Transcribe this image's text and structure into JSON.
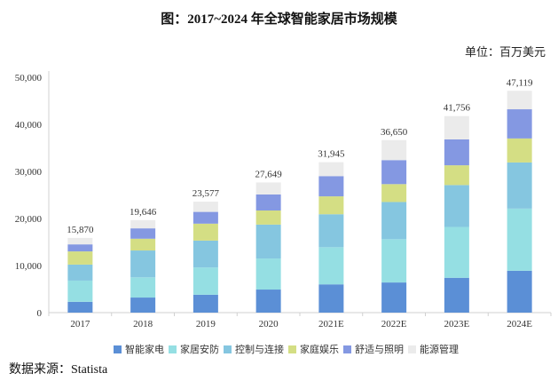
{
  "header": {
    "title": "图：2017~2024 年全球智能家居市场规模",
    "unit": "单位：百万美元"
  },
  "footer": {
    "source": "数据来源：Statista"
  },
  "chart_data": {
    "type": "bar",
    "stacked": true,
    "title": "图：2017~2024 年全球智能家居市场规模",
    "xlabel": "",
    "ylabel": "单位：百万美元",
    "ylim": [
      0,
      50000
    ],
    "yticks": [
      0,
      10000,
      20000,
      30000,
      40000,
      50000
    ],
    "ytick_labels": [
      "0",
      "10,000",
      "20,000",
      "30,000",
      "40,000",
      "50,000"
    ],
    "grid": false,
    "legend_position": "bottom",
    "categories": [
      "2017",
      "2018",
      "2019",
      "2020",
      "2021E",
      "2022E",
      "2023E",
      "2024E"
    ],
    "totals": [
      15870,
      19646,
      23577,
      27649,
      31945,
      36650,
      41756,
      47119
    ],
    "total_labels": [
      "15,870",
      "19,646",
      "23,577",
      "27,649",
      "31,945",
      "36,650",
      "41,756",
      "47,119"
    ],
    "series": [
      {
        "name": "智能家电",
        "color": "#5B8FD6",
        "values": [
          2300,
          3200,
          3800,
          4900,
          6000,
          6400,
          7400,
          8900
        ]
      },
      {
        "name": "家居安防",
        "color": "#95DFE3",
        "values": [
          4500,
          4300,
          5800,
          6600,
          7900,
          9200,
          10800,
          13200
        ]
      },
      {
        "name": "控制与连接",
        "color": "#85C6E0",
        "values": [
          3400,
          5700,
          5700,
          7200,
          7000,
          7900,
          8900,
          9800
        ]
      },
      {
        "name": "家庭娱乐",
        "color": "#D4DE84",
        "values": [
          2800,
          2500,
          3600,
          3000,
          3800,
          3800,
          4200,
          5100
        ]
      },
      {
        "name": "舒适与照明",
        "color": "#8498E2",
        "values": [
          1500,
          2200,
          2500,
          3400,
          4300,
          5100,
          5500,
          6200
        ]
      },
      {
        "name": "能源管理",
        "color": "#EBEBEB",
        "values": [
          1370,
          1746,
          2177,
          2549,
          2945,
          4250,
          4956,
          3919
        ]
      }
    ]
  }
}
